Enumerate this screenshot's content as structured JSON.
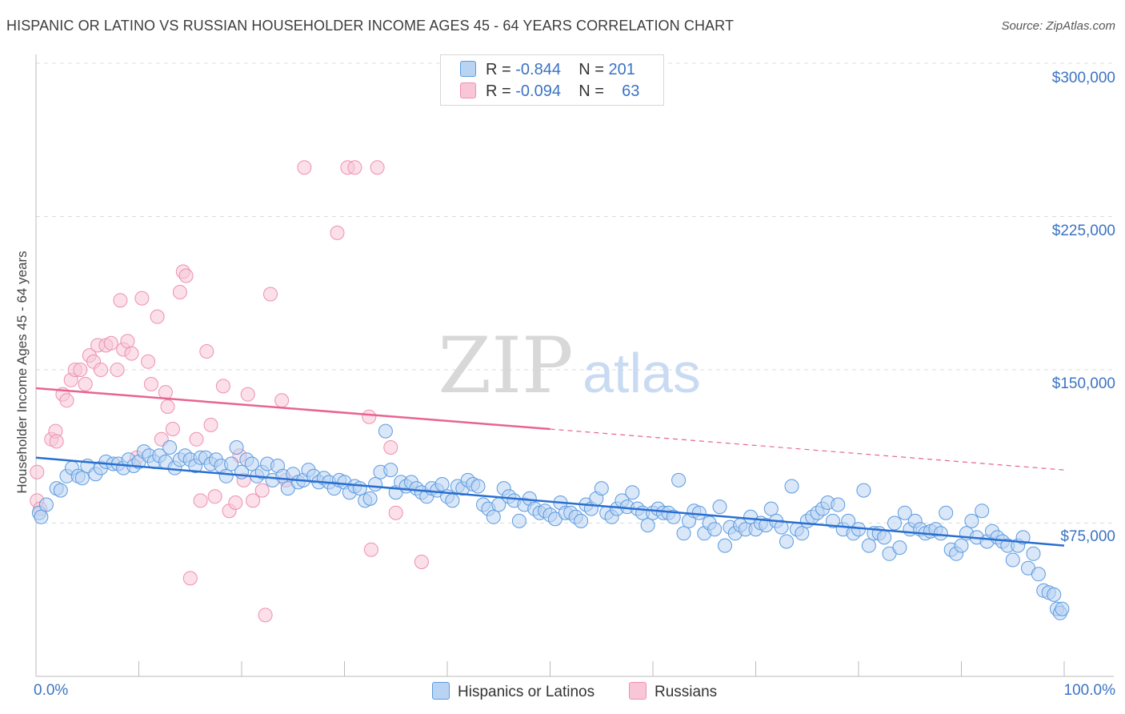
{
  "title": "HISPANIC OR LATINO VS RUSSIAN HOUSEHOLDER INCOME AGES 45 - 64 YEARS CORRELATION CHART",
  "source": "Source: ZipAtlas.com",
  "watermark": {
    "zip": "ZIP",
    "atlas": "atlas"
  },
  "legend": {
    "rows": [
      {
        "r_label": "R = ",
        "r_value": "-0.844",
        "n_label": "N = ",
        "n_value": "201"
      },
      {
        "r_label": "R = ",
        "r_value": "-0.094",
        "n_label": "N = ",
        "n_value": "63"
      }
    ]
  },
  "bottom_legend": [
    "Hispanics or Latinos",
    "Russians"
  ],
  "colors": {
    "blue": "#5b9be0",
    "blue_fill": "#b9d3f3",
    "pink": "#ee8fb0",
    "pink_fill": "#f8c6d7",
    "blue_line": "#2a6fd0",
    "pink_line": "#e8648f",
    "tick_text": "#3b73c4"
  },
  "chart_data": {
    "type": "scatter",
    "title": "HISPANIC OR LATINO VS RUSSIAN HOUSEHOLDER INCOME AGES 45 - 64 YEARS CORRELATION CHART",
    "xlabel": "",
    "ylabel": "Householder Income Ages 45 - 64 years",
    "xlim": [
      0,
      100
    ],
    "ylim": [
      0,
      310000
    ],
    "x_tick_labels": [
      "0.0%",
      "100.0%"
    ],
    "y_ticks": [
      75000,
      150000,
      225000,
      300000
    ],
    "y_tick_labels": [
      "$75,000",
      "$150,000",
      "$225,000",
      "$300,000"
    ],
    "grid": true,
    "legend_position": "top-center",
    "series": [
      {
        "name": "Hispanics or Latinos",
        "r": -0.844,
        "n": 201,
        "trend": {
          "x": [
            0,
            100
          ],
          "y": [
            107000,
            64000
          ]
        },
        "points": [
          [
            0.3,
            80000
          ],
          [
            0.5,
            78000
          ],
          [
            1.0,
            84000
          ],
          [
            2.0,
            92000
          ],
          [
            2.4,
            91000
          ],
          [
            3.0,
            98000
          ],
          [
            3.5,
            102000
          ],
          [
            4.1,
            98000
          ],
          [
            4.5,
            97000
          ],
          [
            5.0,
            103000
          ],
          [
            5.8,
            99000
          ],
          [
            6.3,
            102000
          ],
          [
            6.8,
            105000
          ],
          [
            7.5,
            104000
          ],
          [
            8.0,
            104000
          ],
          [
            8.5,
            102000
          ],
          [
            9.0,
            106000
          ],
          [
            9.5,
            103000
          ],
          [
            10.0,
            105000
          ],
          [
            10.5,
            110000
          ],
          [
            11.0,
            108000
          ],
          [
            11.5,
            105000
          ],
          [
            12.0,
            108000
          ],
          [
            12.6,
            105000
          ],
          [
            13.0,
            112000
          ],
          [
            13.5,
            102000
          ],
          [
            14.0,
            106000
          ],
          [
            14.5,
            108000
          ],
          [
            15.0,
            106000
          ],
          [
            15.5,
            103000
          ],
          [
            16.0,
            107000
          ],
          [
            16.5,
            107000
          ],
          [
            17.0,
            104000
          ],
          [
            17.5,
            106000
          ],
          [
            18.0,
            103000
          ],
          [
            18.5,
            98000
          ],
          [
            19.0,
            104000
          ],
          [
            19.5,
            112000
          ],
          [
            20.0,
            100000
          ],
          [
            20.5,
            106000
          ],
          [
            21.0,
            104000
          ],
          [
            21.5,
            98000
          ],
          [
            22.0,
            100000
          ],
          [
            22.5,
            104000
          ],
          [
            23.0,
            96000
          ],
          [
            23.5,
            103000
          ],
          [
            24.0,
            98000
          ],
          [
            24.5,
            92000
          ],
          [
            25.0,
            99000
          ],
          [
            25.5,
            95000
          ],
          [
            26.0,
            96000
          ],
          [
            26.5,
            101000
          ],
          [
            27.0,
            98000
          ],
          [
            27.5,
            95000
          ],
          [
            28.0,
            97000
          ],
          [
            28.5,
            95000
          ],
          [
            29.0,
            92000
          ],
          [
            29.5,
            96000
          ],
          [
            30.0,
            95000
          ],
          [
            30.5,
            90000
          ],
          [
            31.0,
            93000
          ],
          [
            31.5,
            92000
          ],
          [
            32.0,
            86000
          ],
          [
            32.5,
            87000
          ],
          [
            33.0,
            94000
          ],
          [
            33.5,
            100000
          ],
          [
            34.0,
            120000
          ],
          [
            34.5,
            101000
          ],
          [
            35.0,
            90000
          ],
          [
            35.5,
            95000
          ],
          [
            36.0,
            93000
          ],
          [
            36.5,
            95000
          ],
          [
            37.0,
            92000
          ],
          [
            37.5,
            90000
          ],
          [
            38.0,
            88000
          ],
          [
            38.5,
            92000
          ],
          [
            39.0,
            91000
          ],
          [
            39.5,
            94000
          ],
          [
            40.0,
            88000
          ],
          [
            40.5,
            86000
          ],
          [
            41.0,
            93000
          ],
          [
            41.5,
            92000
          ],
          [
            42.0,
            96000
          ],
          [
            42.5,
            94000
          ],
          [
            43.0,
            93000
          ],
          [
            43.5,
            84000
          ],
          [
            44.0,
            82000
          ],
          [
            44.5,
            78000
          ],
          [
            45.0,
            84000
          ],
          [
            45.5,
            92000
          ],
          [
            46.0,
            88000
          ],
          [
            46.5,
            86000
          ],
          [
            47.0,
            76000
          ],
          [
            47.5,
            84000
          ],
          [
            48.0,
            87000
          ],
          [
            48.5,
            82000
          ],
          [
            49.0,
            80000
          ],
          [
            49.5,
            81000
          ],
          [
            50.0,
            79000
          ],
          [
            50.5,
            77000
          ],
          [
            51.0,
            85000
          ],
          [
            51.5,
            80000
          ],
          [
            52.0,
            80000
          ],
          [
            52.5,
            78000
          ],
          [
            53.0,
            76000
          ],
          [
            53.5,
            84000
          ],
          [
            54.0,
            82000
          ],
          [
            54.5,
            87000
          ],
          [
            55.0,
            92000
          ],
          [
            55.5,
            80000
          ],
          [
            56.0,
            78000
          ],
          [
            56.5,
            82000
          ],
          [
            57.0,
            86000
          ],
          [
            57.5,
            83000
          ],
          [
            58.0,
            90000
          ],
          [
            58.5,
            82000
          ],
          [
            59.0,
            80000
          ],
          [
            59.5,
            74000
          ],
          [
            60.0,
            80000
          ],
          [
            60.5,
            82000
          ],
          [
            61.0,
            80000
          ],
          [
            61.5,
            80000
          ],
          [
            62.0,
            78000
          ],
          [
            62.5,
            96000
          ],
          [
            63.0,
            70000
          ],
          [
            63.5,
            76000
          ],
          [
            64.0,
            81000
          ],
          [
            64.5,
            80000
          ],
          [
            65.0,
            70000
          ],
          [
            65.5,
            75000
          ],
          [
            66.0,
            72000
          ],
          [
            66.5,
            83000
          ],
          [
            67.0,
            64000
          ],
          [
            67.5,
            73000
          ],
          [
            68.0,
            70000
          ],
          [
            68.5,
            74000
          ],
          [
            69.0,
            72000
          ],
          [
            69.5,
            78000
          ],
          [
            70.0,
            72000
          ],
          [
            70.5,
            75000
          ],
          [
            71.0,
            74000
          ],
          [
            71.5,
            82000
          ],
          [
            72.0,
            76000
          ],
          [
            72.5,
            73000
          ],
          [
            73.0,
            66000
          ],
          [
            73.5,
            93000
          ],
          [
            74.0,
            72000
          ],
          [
            74.5,
            70000
          ],
          [
            75.0,
            76000
          ],
          [
            75.5,
            78000
          ],
          [
            76.0,
            80000
          ],
          [
            76.5,
            82000
          ],
          [
            77.0,
            85000
          ],
          [
            77.5,
            76000
          ],
          [
            78.0,
            84000
          ],
          [
            78.5,
            72000
          ],
          [
            79.0,
            76000
          ],
          [
            79.5,
            70000
          ],
          [
            80.0,
            72000
          ],
          [
            80.5,
            91000
          ],
          [
            81.0,
            64000
          ],
          [
            81.5,
            70000
          ],
          [
            82.0,
            70000
          ],
          [
            82.5,
            68000
          ],
          [
            83.0,
            60000
          ],
          [
            83.5,
            75000
          ],
          [
            84.0,
            63000
          ],
          [
            84.5,
            80000
          ],
          [
            85.0,
            72000
          ],
          [
            85.5,
            76000
          ],
          [
            86.0,
            72000
          ],
          [
            86.5,
            70000
          ],
          [
            87.0,
            71000
          ],
          [
            87.5,
            72000
          ],
          [
            88.0,
            70000
          ],
          [
            88.5,
            80000
          ],
          [
            89.0,
            62000
          ],
          [
            89.5,
            60000
          ],
          [
            90.0,
            64000
          ],
          [
            90.5,
            70000
          ],
          [
            91.0,
            76000
          ],
          [
            91.5,
            68000
          ],
          [
            92.0,
            81000
          ],
          [
            92.5,
            66000
          ],
          [
            93.0,
            71000
          ],
          [
            93.5,
            68000
          ],
          [
            94.0,
            66000
          ],
          [
            94.5,
            64000
          ],
          [
            95.0,
            57000
          ],
          [
            95.5,
            64000
          ],
          [
            96.0,
            68000
          ],
          [
            96.5,
            53000
          ],
          [
            97.0,
            60000
          ],
          [
            97.5,
            50000
          ],
          [
            98.0,
            42000
          ],
          [
            98.5,
            41000
          ],
          [
            99.0,
            40000
          ],
          [
            99.3,
            33000
          ],
          [
            99.6,
            31000
          ],
          [
            99.8,
            33000
          ]
        ]
      },
      {
        "name": "Russians",
        "r": -0.094,
        "n": 63,
        "trend": {
          "x": [
            0,
            50
          ],
          "y": [
            141000,
            121000
          ],
          "dashed_to": [
            100,
            101000
          ]
        },
        "points": [
          [
            0.1,
            100000
          ],
          [
            0.1,
            86000
          ],
          [
            0.4,
            82000
          ],
          [
            1.5,
            116000
          ],
          [
            1.9,
            120000
          ],
          [
            2.0,
            115000
          ],
          [
            2.6,
            138000
          ],
          [
            3.0,
            135000
          ],
          [
            3.4,
            145000
          ],
          [
            3.8,
            150000
          ],
          [
            4.3,
            150000
          ],
          [
            4.8,
            143000
          ],
          [
            5.2,
            157000
          ],
          [
            5.6,
            154000
          ],
          [
            6.0,
            162000
          ],
          [
            6.3,
            150000
          ],
          [
            6.8,
            162000
          ],
          [
            7.3,
            163000
          ],
          [
            7.9,
            150000
          ],
          [
            8.2,
            184000
          ],
          [
            8.5,
            160000
          ],
          [
            8.9,
            164000
          ],
          [
            9.3,
            158000
          ],
          [
            9.8,
            107000
          ],
          [
            10.3,
            185000
          ],
          [
            10.9,
            154000
          ],
          [
            11.2,
            143000
          ],
          [
            11.8,
            176000
          ],
          [
            12.2,
            116000
          ],
          [
            12.6,
            139000
          ],
          [
            12.8,
            132000
          ],
          [
            13.3,
            121000
          ],
          [
            14.0,
            188000
          ],
          [
            14.3,
            198000
          ],
          [
            14.6,
            196000
          ],
          [
            15.0,
            48000
          ],
          [
            15.6,
            116000
          ],
          [
            16.0,
            86000
          ],
          [
            16.6,
            159000
          ],
          [
            17.0,
            123000
          ],
          [
            17.4,
            88000
          ],
          [
            18.2,
            142000
          ],
          [
            18.8,
            81000
          ],
          [
            19.4,
            85000
          ],
          [
            19.8,
            108000
          ],
          [
            20.2,
            96000
          ],
          [
            20.6,
            138000
          ],
          [
            21.1,
            86000
          ],
          [
            22.0,
            91000
          ],
          [
            22.3,
            30000
          ],
          [
            22.8,
            187000
          ],
          [
            23.9,
            135000
          ],
          [
            24.3,
            96000
          ],
          [
            26.1,
            249000
          ],
          [
            29.3,
            217000
          ],
          [
            30.3,
            249000
          ],
          [
            31.0,
            249000
          ],
          [
            32.4,
            127000
          ],
          [
            32.6,
            62000
          ],
          [
            33.2,
            249000
          ],
          [
            34.5,
            112000
          ],
          [
            35.0,
            80000
          ],
          [
            37.5,
            56000
          ]
        ]
      }
    ]
  }
}
